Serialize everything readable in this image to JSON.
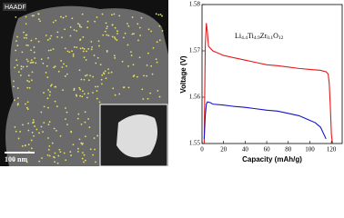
{
  "image": {
    "label": "HAADF",
    "scale_bar": "100 nm"
  },
  "chart_data": {
    "type": "line",
    "annotation_parts": [
      "Li",
      "4.4",
      "Ti",
      "4.9",
      "Zr",
      "0.1",
      "O",
      "12"
    ],
    "x_label": "Capacity (mAh/g)",
    "y_label": "Voltage (V)",
    "xlim": [
      0,
      130
    ],
    "ylim": [
      1.55,
      1.58
    ],
    "xticks": [
      0,
      20,
      40,
      60,
      80,
      100,
      120
    ],
    "yticks": [
      1.55,
      1.56,
      1.57,
      1.58
    ],
    "series": [
      {
        "color": "#e41a1a",
        "x": [
          2,
          3,
          4,
          5,
          6,
          8,
          10,
          15,
          20,
          30,
          40,
          50,
          60,
          70,
          80,
          90,
          100,
          110,
          115,
          117,
          118,
          119,
          120,
          121
        ],
        "values": [
          1.55,
          1.571,
          1.576,
          1.574,
          1.571,
          1.5705,
          1.57,
          1.5695,
          1.569,
          1.5685,
          1.568,
          1.5675,
          1.567,
          1.5668,
          1.5665,
          1.5662,
          1.566,
          1.5658,
          1.5655,
          1.565,
          1.563,
          1.558,
          1.552,
          1.55
        ]
      },
      {
        "color": "#1414c8",
        "x": [
          2,
          3,
          4,
          5,
          8,
          10,
          20,
          30,
          40,
          50,
          60,
          70,
          80,
          90,
          100,
          105,
          110,
          113,
          115
        ],
        "values": [
          1.551,
          1.556,
          1.5585,
          1.559,
          1.5588,
          1.5585,
          1.5583,
          1.558,
          1.5578,
          1.5575,
          1.5572,
          1.557,
          1.5565,
          1.556,
          1.555,
          1.5545,
          1.5535,
          1.552,
          1.551
        ]
      }
    ]
  }
}
